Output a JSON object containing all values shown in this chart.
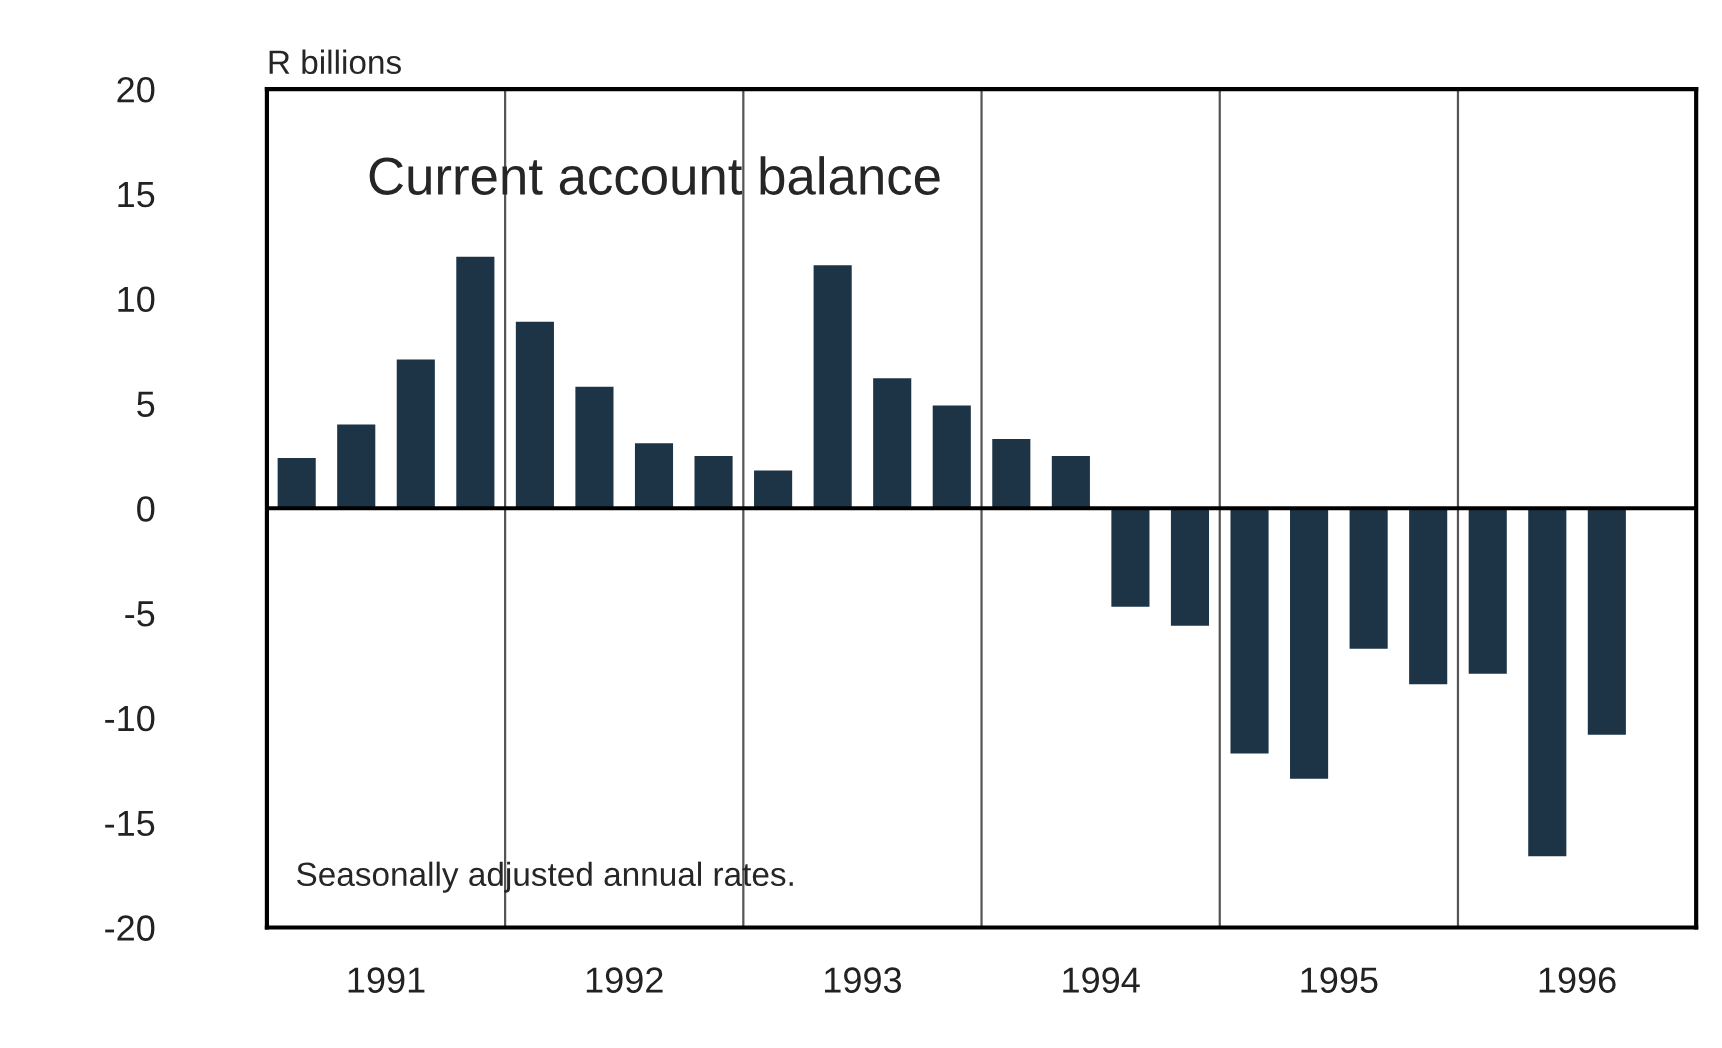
{
  "chart_data": {
    "type": "bar",
    "title": "Current account balance",
    "ylabel": "R billions",
    "annotations": [
      "Seasonally adjusted annual rates."
    ],
    "x": [
      1991.125,
      1991.375,
      1991.625,
      1991.875,
      1992.125,
      1992.375,
      1992.625,
      1992.875,
      1993.125,
      1993.375,
      1993.625,
      1993.875,
      1994.125,
      1994.375,
      1994.625,
      1994.875,
      1995.125,
      1995.375,
      1995.625,
      1995.875,
      1996.125,
      1996.375,
      1996.625
    ],
    "series": [
      {
        "color": "#1c3446",
        "values": [
          2.4,
          4.0,
          7.1,
          12.0,
          8.9,
          5.8,
          3.1,
          2.5,
          1.8,
          11.6,
          6.2,
          4.9,
          3.3,
          2.5,
          -4.7,
          -5.6,
          -11.7,
          -12.9,
          -6.7,
          -8.4,
          -7.9,
          -16.6,
          -10.8
        ]
      }
    ],
    "xlim": [
      1991,
      1997
    ],
    "xticks": [
      {
        "value": 1991.5,
        "label": "1991"
      },
      {
        "value": 1992.5,
        "label": "1992"
      },
      {
        "value": 1993.5,
        "label": "1993"
      },
      {
        "value": 1994.5,
        "label": "1994"
      },
      {
        "value": 1995.5,
        "label": "1995"
      },
      {
        "value": 1996.5,
        "label": "1996"
      }
    ],
    "ylim": [
      -20,
      20
    ],
    "yticks": [
      -20,
      -15,
      -10,
      -5,
      0,
      5,
      10,
      15,
      20
    ],
    "ref_lines": [
      {
        "axis": "y",
        "value": 0,
        "color": "#000000"
      },
      {
        "axis": "x",
        "value": 1992,
        "color": "#555555"
      },
      {
        "axis": "x",
        "value": 1993,
        "color": "#555555"
      },
      {
        "axis": "x",
        "value": 1994,
        "color": "#555555"
      },
      {
        "axis": "x",
        "value": 1995,
        "color": "#555555"
      },
      {
        "axis": "x",
        "value": 1996,
        "color": "#555555"
      }
    ],
    "grid": false,
    "legend": false
  }
}
